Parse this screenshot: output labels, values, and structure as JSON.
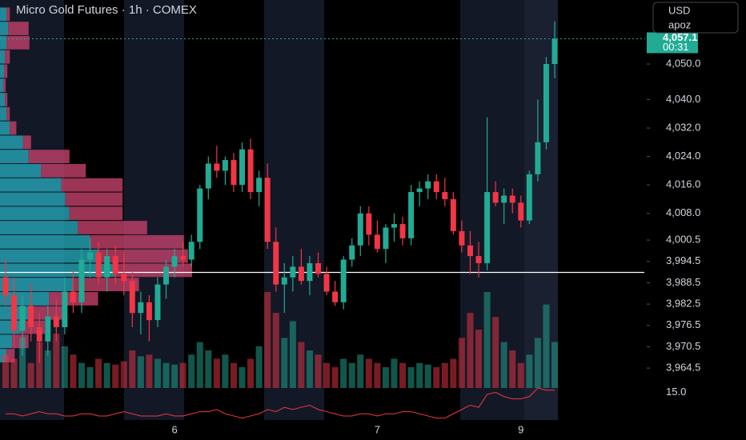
{
  "chart_data": {
    "type": "candlestick",
    "title": "Micro Gold Futures · 1h · COMEX",
    "currency": "USD",
    "account": "apoz",
    "up_color": "#22ab94",
    "down_color": "#f23645",
    "categories": [
      null,
      null,
      null,
      null,
      null,
      null,
      null,
      null,
      null,
      null,
      null,
      null,
      null,
      null,
      null,
      null,
      null,
      null,
      null,
      null,
      "6",
      null,
      null,
      null,
      null,
      null,
      null,
      null,
      null,
      null,
      null,
      null,
      null,
      null,
      null,
      null,
      null,
      null,
      null,
      null,
      null,
      null,
      null,
      null,
      "7",
      null,
      null,
      null,
      null,
      null,
      null,
      null,
      null,
      null,
      null,
      null,
      null,
      null,
      null,
      null,
      null,
      "9",
      null,
      null,
      null,
      null
    ],
    "open": [
      3990,
      3985,
      3975,
      3982,
      3976,
      3972,
      3979,
      3976,
      3986,
      3983,
      3995,
      3997,
      3990,
      3996,
      3991,
      3989,
      3980,
      3983,
      3978,
      3988,
      3993,
      3996,
      3995,
      4000,
      4015,
      4022,
      4020,
      4023,
      4016,
      4026,
      4014,
      4018,
      4000,
      3988,
      3990,
      3993,
      3989,
      3994,
      3991,
      3986,
      3983,
      3995,
      3999,
      4008,
      4002,
      3998,
      4004,
      4005,
      4001,
      4014,
      4015,
      4017,
      4014,
      4012,
      4003,
      3999,
      3996,
      3994,
      4014,
      4011,
      4013,
      4011,
      4006,
      4019,
      4028,
      4050
    ],
    "high": [
      3995,
      3990,
      3985,
      3988,
      3980,
      3982,
      3984,
      3990,
      3992,
      3998,
      4001,
      4000,
      3998,
      3999,
      3997,
      3992,
      3986,
      3985,
      3990,
      3995,
      3998,
      4000,
      4002,
      4016,
      4024,
      4027,
      4024,
      4025,
      4028,
      4029,
      4020,
      4022,
      4004,
      3994,
      3996,
      3998,
      3996,
      3997,
      3993,
      3989,
      3996,
      4001,
      4010,
      4010,
      4006,
      4005,
      4008,
      4007,
      4016,
      4017,
      4019,
      4019,
      4018,
      4014,
      4006,
      4003,
      4000,
      4035,
      4017,
      4015,
      4015,
      4013,
      4020,
      4040,
      4052,
      4062
    ],
    "low": [
      3982,
      3970,
      3968,
      3972,
      3966,
      3968,
      3972,
      3974,
      3980,
      3980,
      3990,
      3988,
      3986,
      3988,
      3985,
      3976,
      3974,
      3972,
      3976,
      3984,
      3990,
      3993,
      3993,
      3998,
      4012,
      4018,
      4016,
      4014,
      4014,
      4012,
      4010,
      3998,
      3986,
      3980,
      3986,
      3988,
      3985,
      3990,
      3985,
      3982,
      3981,
      3993,
      3996,
      3999,
      3997,
      3994,
      4000,
      3999,
      3999,
      4010,
      4012,
      4012,
      4010,
      4002,
      3997,
      3991,
      3990,
      3992,
      4010,
      4005,
      4008,
      4004,
      4005,
      4017,
      4026,
      4046
    ],
    "close": [
      3985,
      3975,
      3982,
      3976,
      3972,
      3979,
      3976,
      3986,
      3983,
      3995,
      3997,
      3990,
      3996,
      3991,
      3989,
      3980,
      3983,
      3978,
      3988,
      3993,
      3996,
      3995,
      4000,
      4015,
      4022,
      4020,
      4023,
      4016,
      4026,
      4014,
      4018,
      4000,
      3988,
      3990,
      3993,
      3989,
      3994,
      3991,
      3986,
      3983,
      3995,
      3999,
      4008,
      4002,
      3998,
      4004,
      4005,
      4001,
      4014,
      4015,
      4017,
      4014,
      4012,
      4003,
      3999,
      3996,
      3994,
      4014,
      4011,
      4013,
      4011,
      4006,
      4019,
      4028,
      4050,
      4057.1
    ],
    "volume": [
      40,
      35,
      60,
      30,
      55,
      45,
      65,
      50,
      40,
      30,
      25,
      35,
      30,
      28,
      32,
      45,
      38,
      40,
      35,
      30,
      28,
      30,
      40,
      55,
      45,
      35,
      40,
      30,
      25,
      35,
      50,
      115,
      90,
      60,
      80,
      55,
      45,
      40,
      30,
      25,
      35,
      30,
      40,
      35,
      30,
      25,
      35,
      30,
      25,
      30,
      28,
      25,
      30,
      35,
      60,
      90,
      70,
      115,
      85,
      55,
      45,
      30,
      40,
      60,
      100,
      55
    ],
    "indicator": {
      "color": "#f23645",
      "values": [
        4,
        4,
        3,
        4,
        5,
        4,
        4,
        3,
        3,
        4,
        4,
        3,
        3,
        4,
        5,
        4,
        3,
        3,
        3,
        4,
        3,
        3,
        4,
        5,
        5,
        6,
        4,
        3,
        2,
        3,
        4,
        6,
        5,
        7,
        6,
        7,
        8,
        6,
        5,
        4,
        3,
        3,
        4,
        4,
        3,
        4,
        4,
        5,
        5,
        4,
        3,
        2,
        2,
        4,
        6,
        8,
        7,
        13,
        14,
        12,
        11,
        11,
        12,
        16,
        15,
        15
      ],
      "ylim": [
        0,
        16
      ],
      "yticks": [
        {
          "value": 15,
          "label": "15.0"
        }
      ]
    },
    "volume_profile": {
      "levels": [
        4064,
        4060,
        4056,
        4052,
        4048,
        4044,
        4040,
        4036,
        4032,
        4028,
        4024,
        4020,
        4016,
        4012,
        4008,
        4004,
        4000,
        3996,
        3992,
        3988,
        3984,
        3980,
        3976,
        3972,
        3968
      ],
      "series": [
        {
          "name": "buy",
          "color": "#26a6b8",
          "values": [
            8,
            10,
            8,
            6,
            5,
            4,
            6,
            8,
            12,
            28,
            35,
            50,
            75,
            80,
            85,
            95,
            110,
            120,
            140,
            90,
            60,
            40,
            25,
            15,
            8
          ]
        },
        {
          "name": "sell",
          "color": "#c2416a",
          "values": [
            4,
            25,
            28,
            6,
            4,
            3,
            3,
            4,
            8,
            10,
            50,
            55,
            75,
            70,
            65,
            85,
            115,
            110,
            95,
            80,
            60,
            40,
            30,
            20,
            10
          ]
        }
      ]
    },
    "ylim": [
      3958.9,
      4068
    ],
    "yticks": [
      {
        "value": 4050,
        "label": "4,050.0"
      },
      {
        "value": 4040,
        "label": "4,040.0"
      },
      {
        "value": 4032,
        "label": "4,032.0"
      },
      {
        "value": 4024,
        "label": "4,024.0"
      },
      {
        "value": 4016,
        "label": "4,016.0"
      },
      {
        "value": 4008,
        "label": "4,008.0"
      },
      {
        "value": 4000.5,
        "label": "4,000.5"
      },
      {
        "value": 3994.5,
        "label": "3,994.5"
      },
      {
        "value": 3988.5,
        "label": "3,988.5"
      },
      {
        "value": 3982.5,
        "label": "3,982.5"
      },
      {
        "value": 3976.5,
        "label": "3,976.5"
      },
      {
        "value": 3970.5,
        "label": "3,970.5"
      },
      {
        "value": 3964.5,
        "label": "3,964.5"
      }
    ],
    "hline": 3991.4,
    "price_tag": {
      "value": 4057.1,
      "label": "4,057.1",
      "countdown": "00:31"
    }
  }
}
